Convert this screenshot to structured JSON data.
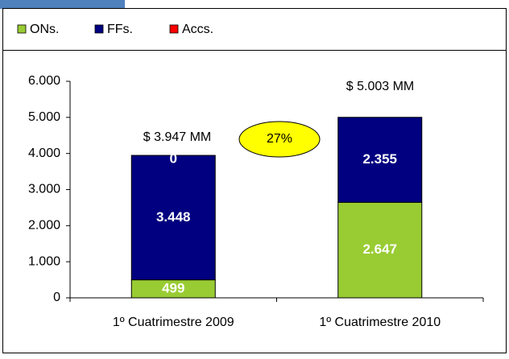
{
  "chart_data": {
    "type": "bar",
    "stacked": true,
    "categories": [
      "1º Cuatrimestre 2009",
      "1º Cuatrimestre 2010"
    ],
    "series": [
      {
        "name": "ONs.",
        "color": "#99cc33",
        "values": [
          499,
          2647
        ],
        "value_labels": [
          "499",
          "2.647"
        ]
      },
      {
        "name": "FFs.",
        "color": "#000080",
        "values": [
          3448,
          2355
        ],
        "value_labels": [
          "3.448",
          "2.355"
        ]
      },
      {
        "name": "Accs.",
        "color": "#ff0000",
        "values": [
          0,
          0
        ],
        "value_labels": [
          "0",
          null
        ]
      }
    ],
    "ylim": [
      0,
      6000
    ],
    "yticks": [
      0,
      {
        "value": 1000,
        "label": "1.000"
      },
      {
        "value": 2000,
        "label": "2.000"
      },
      {
        "value": 3000,
        "label": "3.000"
      },
      {
        "value": 4000,
        "label": "4.000"
      },
      {
        "value": 5000,
        "label": "5.000"
      },
      {
        "value": 6000,
        "label": "6.000"
      }
    ],
    "annotations": [
      "$ 3.947 MM",
      "$ 5.003 MM",
      "27%"
    ],
    "legend": "top"
  }
}
